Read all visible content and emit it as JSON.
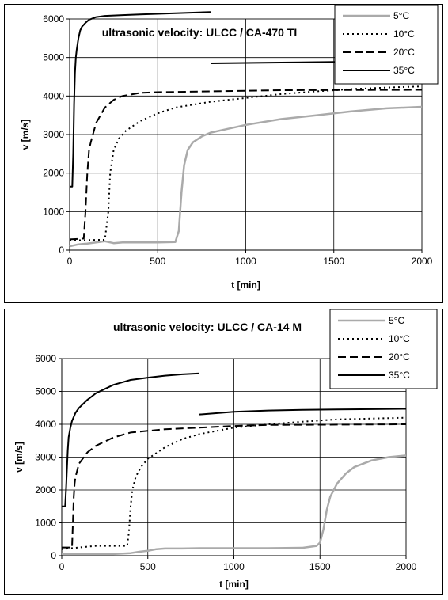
{
  "chart_data": [
    {
      "type": "line",
      "title": "ultrasonic velocity: ULCC / CA-470 TI",
      "xlabel": "t [min]",
      "ylabel": "v [m/s]",
      "xlim": [
        0,
        2000
      ],
      "ylim": [
        0,
        6000
      ],
      "xticks": [
        "0",
        "500",
        "1000",
        "1500",
        "2000"
      ],
      "yticks": [
        "0",
        "1000",
        "2000",
        "3000",
        "4000",
        "5000",
        "6000"
      ],
      "grid": true,
      "legend_position": "top-right",
      "series": [
        {
          "name": "5°C",
          "color": "#aaaaaa",
          "dash": "solid",
          "x": [
            0,
            50,
            100,
            150,
            200,
            250,
            300,
            400,
            500,
            600,
            620,
            635,
            650,
            670,
            700,
            750,
            800,
            900,
            1000,
            1200,
            1400,
            1600,
            1800,
            2000
          ],
          "y": [
            100,
            150,
            170,
            200,
            230,
            180,
            200,
            200,
            200,
            210,
            500,
            1500,
            2200,
            2600,
            2800,
            2950,
            3050,
            3150,
            3250,
            3400,
            3500,
            3600,
            3680,
            3720
          ]
        },
        {
          "name": "10°C",
          "color": "#000000",
          "dash": "dotted",
          "x": [
            0,
            100,
            200,
            220,
            230,
            250,
            280,
            320,
            400,
            500,
            600,
            800,
            1000,
            1200,
            1400,
            1600,
            1800,
            2000
          ],
          "y": [
            250,
            260,
            270,
            1000,
            2000,
            2600,
            2900,
            3100,
            3350,
            3550,
            3700,
            3850,
            3950,
            4050,
            4120,
            4180,
            4220,
            4250
          ]
        },
        {
          "name": "20°C",
          "color": "#000000",
          "dash": "dashed",
          "x": [
            0,
            80,
            90,
            100,
            110,
            120,
            150,
            200,
            250,
            300,
            400,
            500,
            800,
            1200,
            2000
          ],
          "y": [
            280,
            300,
            1000,
            2000,
            2600,
            2800,
            3300,
            3700,
            3900,
            4000,
            4080,
            4100,
            4120,
            4150,
            4160
          ]
        },
        {
          "name": "35°C",
          "color": "#000000",
          "dash": "solid",
          "x": [
            0,
            15,
            20,
            25,
            30,
            35,
            40,
            50,
            60,
            70,
            90,
            110,
            150,
            200,
            300,
            400,
            600,
            800,
            null,
            800,
            1200,
            1600,
            2000
          ],
          "y": [
            1650,
            1650,
            2500,
            3800,
            4600,
            5000,
            5200,
            5500,
            5700,
            5800,
            5900,
            5980,
            6050,
            6080,
            6100,
            6120,
            6150,
            6180,
            null,
            4850,
            4870,
            4890,
            4900
          ]
        }
      ]
    },
    {
      "type": "line",
      "title": "ultrasonic velocity: ULCC / CA-14 M",
      "xlabel": "t [min]",
      "ylabel": "v [m/s]",
      "xlim": [
        0,
        2000
      ],
      "ylim": [
        0,
        6000
      ],
      "xticks": [
        "0",
        "500",
        "1000",
        "1500",
        "2000"
      ],
      "yticks": [
        "0",
        "1000",
        "2000",
        "3000",
        "4000",
        "5000",
        "6000"
      ],
      "grid": true,
      "legend_position": "top-right",
      "series": [
        {
          "name": "5°C",
          "color": "#aaaaaa",
          "dash": "solid",
          "x": [
            0,
            100,
            200,
            300,
            400,
            450,
            500,
            550,
            600,
            700,
            800,
            1000,
            1200,
            1400,
            1480,
            1500,
            1520,
            1540,
            1560,
            1600,
            1650,
            1700,
            1800,
            1900,
            2000
          ],
          "y": [
            50,
            50,
            50,
            50,
            80,
            120,
            150,
            200,
            220,
            220,
            230,
            230,
            230,
            240,
            300,
            400,
            800,
            1400,
            1800,
            2200,
            2500,
            2700,
            2900,
            3000,
            3050
          ]
        },
        {
          "name": "10°C",
          "color": "#000000",
          "dash": "dotted",
          "x": [
            0,
            100,
            200,
            300,
            380,
            390,
            400,
            410,
            430,
            460,
            500,
            600,
            700,
            800,
            1000,
            1200,
            1400,
            1600,
            2000
          ],
          "y": [
            200,
            250,
            300,
            300,
            300,
            700,
            1500,
            2000,
            2400,
            2700,
            2950,
            3300,
            3550,
            3700,
            3900,
            4000,
            4080,
            4150,
            4200
          ]
        },
        {
          "name": "20°C",
          "color": "#000000",
          "dash": "dashed",
          "x": [
            0,
            60,
            65,
            70,
            75,
            80,
            100,
            150,
            200,
            300,
            400,
            500,
            600,
            800,
            1000,
            1200,
            2000
          ],
          "y": [
            250,
            250,
            1000,
            1800,
            2200,
            2400,
            2800,
            3150,
            3350,
            3600,
            3750,
            3800,
            3850,
            3900,
            3950,
            3980,
            4000
          ]
        },
        {
          "name": "35°C",
          "color": "#000000",
          "dash": "solid",
          "x": [
            0,
            20,
            25,
            30,
            35,
            40,
            50,
            60,
            80,
            100,
            150,
            200,
            300,
            400,
            500,
            600,
            700,
            800,
            null,
            800,
            1000,
            1200,
            1400,
            1600,
            1800,
            2000
          ],
          "y": [
            1500,
            1500,
            2000,
            2600,
            3200,
            3600,
            3900,
            4100,
            4350,
            4500,
            4750,
            4950,
            5200,
            5350,
            5420,
            5480,
            5520,
            5550,
            null,
            4300,
            4380,
            4420,
            4440,
            4450,
            4460,
            4470
          ]
        }
      ]
    }
  ]
}
